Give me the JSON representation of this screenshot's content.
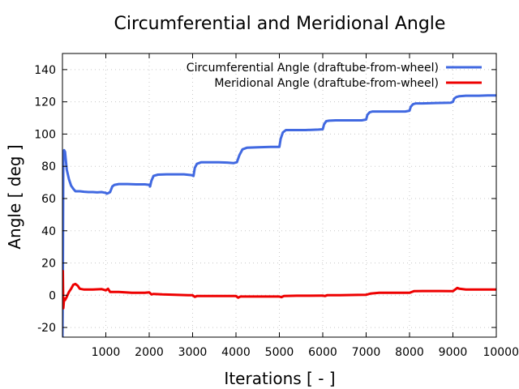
{
  "chart_data": {
    "type": "line",
    "title": "Circumferential and Meridional Angle",
    "xlabel": "Iterations [ - ]",
    "ylabel": "Angle [ deg ]",
    "xlim": [
      0,
      10000
    ],
    "ylim": [
      -26,
      150
    ],
    "xticks": [
      1000,
      2000,
      3000,
      4000,
      5000,
      6000,
      7000,
      8000,
      9000,
      10000
    ],
    "yticks": [
      -20,
      0,
      20,
      40,
      60,
      80,
      100,
      120,
      140
    ],
    "grid": true,
    "legend_position": "top-right",
    "series": [
      {
        "name": "Circumferential Angle (draftube-from-wheel)",
        "color": "#4169e1",
        "x": [
          0,
          10,
          20,
          40,
          60,
          100,
          150,
          200,
          250,
          300,
          400,
          500,
          600,
          700,
          800,
          900,
          1000,
          1020,
          1050,
          1100,
          1150,
          1200,
          1300,
          1500,
          1700,
          1900,
          2000,
          2020,
          2050,
          2100,
          2200,
          2400,
          2600,
          2800,
          2980,
          3020,
          3050,
          3100,
          3200,
          3400,
          3600,
          3800,
          3950,
          4020,
          4080,
          4150,
          4250,
          4500,
          4800,
          5000,
          5030,
          5080,
          5150,
          5300,
          5600,
          5900,
          6000,
          6030,
          6080,
          6150,
          6300,
          6600,
          6900,
          7000,
          7030,
          7080,
          7150,
          7300,
          7600,
          7900,
          8000,
          8030,
          8080,
          8150,
          8300,
          8600,
          8950,
          9000,
          9030,
          9080,
          9150,
          9300,
          9600,
          9800,
          10000
        ],
        "values": [
          -26,
          5,
          88,
          90,
          89,
          78,
          72,
          68,
          66,
          64.5,
          64.5,
          64.2,
          64.0,
          64.0,
          63.8,
          64.0,
          63.5,
          63,
          63.3,
          64,
          67.5,
          68.5,
          69,
          69,
          68.8,
          68.8,
          68.5,
          67.5,
          71,
          74,
          74.8,
          75,
          75,
          75,
          74.5,
          74,
          79,
          81.5,
          82.5,
          82.5,
          82.5,
          82.3,
          82,
          82.5,
          87,
          90.5,
          91.5,
          91.8,
          92,
          92,
          97,
          101,
          102.5,
          102.5,
          102.5,
          102.8,
          103,
          106,
          108,
          108.3,
          108.5,
          108.5,
          108.5,
          109,
          112,
          113.5,
          114,
          114,
          114,
          114,
          114.5,
          117,
          118.5,
          119,
          119,
          119.3,
          119.5,
          120,
          122,
          123,
          123.5,
          123.8,
          123.8,
          124,
          124
        ]
      },
      {
        "name": "Meridional Angle (draftube-from-wheel)",
        "color": "#ee0000",
        "x": [
          0,
          10,
          20,
          40,
          60,
          100,
          150,
          200,
          250,
          300,
          350,
          400,
          500,
          700,
          900,
          1000,
          1050,
          1100,
          1300,
          1600,
          1900,
          2000,
          2050,
          2100,
          2300,
          2600,
          2900,
          3000,
          3050,
          3100,
          3400,
          3700,
          4000,
          4050,
          4100,
          4400,
          4700,
          5000,
          5050,
          5100,
          5400,
          5700,
          6000,
          6050,
          6100,
          6400,
          6800,
          7000,
          7100,
          7300,
          7600,
          8000,
          8100,
          8300,
          8700,
          9000,
          9100,
          9150,
          9300,
          9600,
          10000
        ],
        "values": [
          0,
          15,
          -8,
          -2,
          -3,
          -1,
          2,
          4,
          6.5,
          7,
          6,
          4,
          3.5,
          3.5,
          3.8,
          3,
          4,
          2,
          2,
          1.5,
          1.5,
          1.8,
          0.5,
          0.8,
          0.5,
          0.3,
          0,
          0,
          -1,
          -0.5,
          -0.5,
          -0.5,
          -0.5,
          -1.5,
          -0.8,
          -0.8,
          -0.8,
          -0.8,
          -1.2,
          -0.5,
          -0.3,
          -0.3,
          -0.2,
          -0.5,
          0,
          0,
          0.2,
          0.3,
          1,
          1.5,
          1.5,
          1.5,
          2.5,
          2.6,
          2.6,
          2.5,
          4.5,
          4,
          3.5,
          3.5,
          3.5
        ]
      }
    ]
  }
}
